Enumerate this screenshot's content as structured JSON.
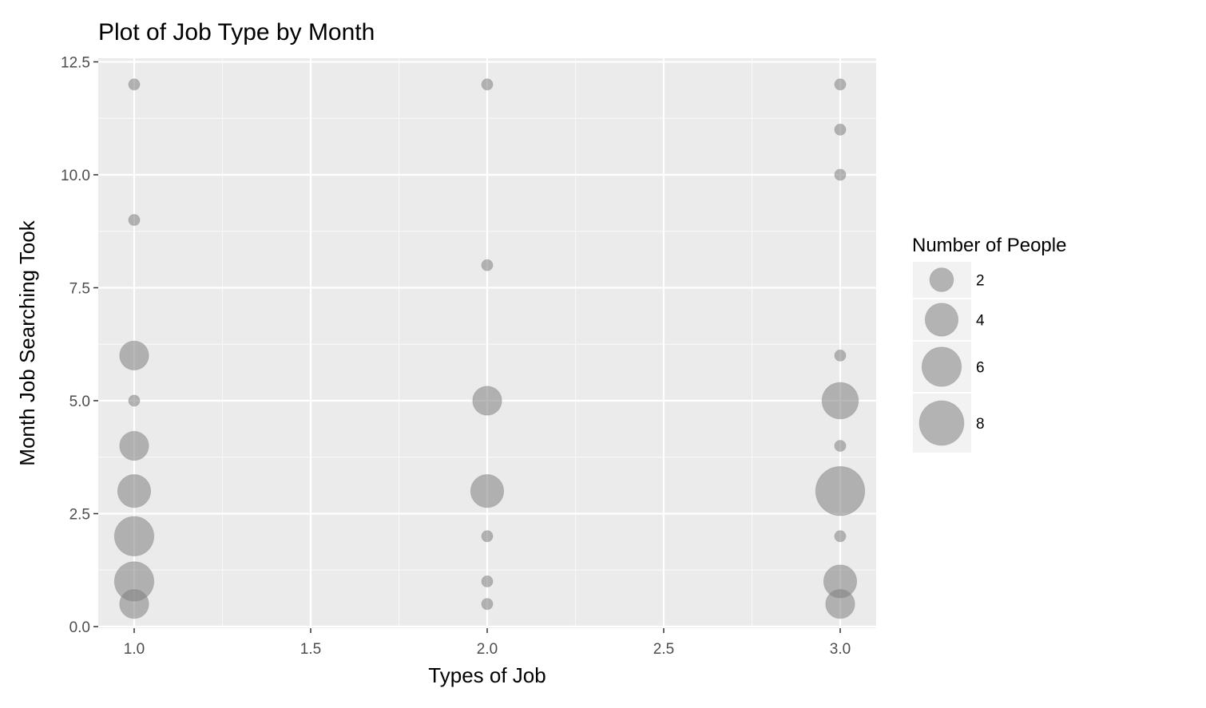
{
  "chart_data": {
    "type": "scatter",
    "title": "Plot of Job Type by Month",
    "xlabel": "Types of Job",
    "ylabel": "Month Job Searching Took",
    "xlim": [
      0.9,
      3.1
    ],
    "ylim": [
      0.0,
      12.5
    ],
    "x_ticks": [
      1.0,
      1.5,
      2.0,
      2.5,
      3.0
    ],
    "x_tick_labels": [
      "1.0",
      "1.5",
      "2.0",
      "2.5",
      "3.0"
    ],
    "y_ticks": [
      0.0,
      2.5,
      5.0,
      7.5,
      10.0,
      12.5
    ],
    "y_tick_labels": [
      "0.0",
      "2.5",
      "5.0",
      "7.5",
      "10.0",
      "12.5"
    ],
    "grid": true,
    "legend": {
      "title": "Number of People",
      "position": "right",
      "entries": [
        {
          "value": 2,
          "label": "2"
        },
        {
          "value": 4,
          "label": "4"
        },
        {
          "value": 6,
          "label": "6"
        },
        {
          "value": 8,
          "label": "8"
        }
      ]
    },
    "points": [
      {
        "x": 1,
        "y": 12,
        "size": 1
      },
      {
        "x": 1,
        "y": 9,
        "size": 1
      },
      {
        "x": 1,
        "y": 6,
        "size": 3
      },
      {
        "x": 1,
        "y": 5,
        "size": 1
      },
      {
        "x": 1,
        "y": 4,
        "size": 3
      },
      {
        "x": 1,
        "y": 3,
        "size": 4
      },
      {
        "x": 1,
        "y": 2,
        "size": 6
      },
      {
        "x": 1,
        "y": 1,
        "size": 6
      },
      {
        "x": 1,
        "y": 0.5,
        "size": 3
      },
      {
        "x": 2,
        "y": 12,
        "size": 1
      },
      {
        "x": 2,
        "y": 8,
        "size": 1
      },
      {
        "x": 2,
        "y": 5,
        "size": 3
      },
      {
        "x": 2,
        "y": 3,
        "size": 4
      },
      {
        "x": 2,
        "y": 2,
        "size": 1
      },
      {
        "x": 2,
        "y": 1,
        "size": 1
      },
      {
        "x": 2,
        "y": 0.5,
        "size": 1
      },
      {
        "x": 3,
        "y": 12,
        "size": 1
      },
      {
        "x": 3,
        "y": 11,
        "size": 1
      },
      {
        "x": 3,
        "y": 10,
        "size": 1
      },
      {
        "x": 3,
        "y": 6,
        "size": 1
      },
      {
        "x": 3,
        "y": 5,
        "size": 5
      },
      {
        "x": 3,
        "y": 4,
        "size": 1
      },
      {
        "x": 3,
        "y": 3,
        "size": 10
      },
      {
        "x": 3,
        "y": 2,
        "size": 1
      },
      {
        "x": 3,
        "y": 1,
        "size": 4
      },
      {
        "x": 3,
        "y": 0.5,
        "size": 3
      }
    ]
  }
}
